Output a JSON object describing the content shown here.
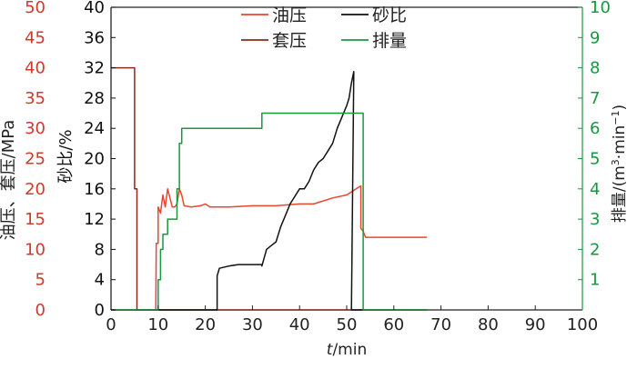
{
  "chart_data": {
    "type": "line",
    "x_axis": {
      "label_italic": "t",
      "label_rest": "/min",
      "min": 0,
      "max": 100,
      "ticks": [
        "0",
        "10",
        "20",
        "30",
        "40",
        "50",
        "60",
        "70",
        "80",
        "90",
        "100"
      ]
    },
    "y_axes": {
      "outer_left": {
        "label": "油压、套压/MPa",
        "color": "#d0392b",
        "min": 0,
        "max": 50,
        "ticks": [
          "0",
          "5",
          "10",
          "15",
          "20",
          "25",
          "30",
          "35",
          "40",
          "45",
          "50"
        ]
      },
      "inner_left": {
        "label": "砂比/%",
        "color": "#111111",
        "min": 0,
        "max": 40,
        "ticks": [
          "0",
          "4",
          "8",
          "12",
          "16",
          "20",
          "24",
          "28",
          "32",
          "36",
          "40"
        ]
      },
      "right": {
        "label_main": "排量/(m",
        "label_sup1": "3",
        "label_mid": "·min",
        "label_sup2": "−1",
        "label_end": ")",
        "color": "#1a9641",
        "min": 0,
        "max": 10,
        "ticks": [
          "1",
          "2",
          "3",
          "4",
          "5",
          "6",
          "7",
          "8",
          "9",
          "10"
        ]
      }
    },
    "legend": {
      "placement": "top-center",
      "entries": [
        {
          "name": "油压",
          "color": "#e8472f"
        },
        {
          "name": "砂比",
          "color": "#111111"
        },
        {
          "name": "套压",
          "color": "#8b2a1a"
        },
        {
          "name": "排量",
          "color": "#1a9641"
        }
      ]
    },
    "series": [
      {
        "name": "油压",
        "axis": "outer_left",
        "color": "#e8472f",
        "points": [
          [
            0,
            0
          ],
          [
            9.5,
            0
          ],
          [
            9.6,
            11
          ],
          [
            10,
            11
          ],
          [
            10,
            17
          ],
          [
            10.5,
            16
          ],
          [
            11,
            19
          ],
          [
            11.5,
            17
          ],
          [
            12,
            20
          ],
          [
            12.5,
            18.5
          ],
          [
            13,
            17
          ],
          [
            13.5,
            17
          ],
          [
            14,
            17.5
          ],
          [
            14.5,
            20
          ],
          [
            15,
            19
          ],
          [
            15.5,
            17.2
          ],
          [
            17,
            17
          ],
          [
            19,
            17.2
          ],
          [
            20,
            17.5
          ],
          [
            21,
            17
          ],
          [
            25,
            17
          ],
          [
            30,
            17.2
          ],
          [
            35,
            17.2
          ],
          [
            40,
            17.5
          ],
          [
            43,
            17.5
          ],
          [
            45,
            18
          ],
          [
            47,
            18.5
          ],
          [
            50,
            19
          ],
          [
            52,
            20
          ],
          [
            53,
            20.5
          ],
          [
            53,
            13.5
          ],
          [
            53.5,
            13
          ],
          [
            54,
            12
          ],
          [
            67,
            12
          ]
        ]
      },
      {
        "name": "套压",
        "axis": "outer_left",
        "color": "#8b2a1a",
        "points": [
          [
            0,
            40
          ],
          [
            5,
            40
          ],
          [
            5,
            20
          ],
          [
            5.5,
            20
          ],
          [
            5.5,
            0
          ],
          [
            67,
            0
          ]
        ]
      },
      {
        "name": "砂比",
        "axis": "inner_left",
        "color": "#111111",
        "points": [
          [
            0,
            0
          ],
          [
            22.5,
            0
          ],
          [
            22.5,
            4.5
          ],
          [
            23,
            5.5
          ],
          [
            25,
            5.8
          ],
          [
            27,
            6
          ],
          [
            32,
            6
          ],
          [
            32,
            5.8
          ],
          [
            33,
            8
          ],
          [
            34,
            8.5
          ],
          [
            35,
            9
          ],
          [
            36,
            11
          ],
          [
            37,
            12.5
          ],
          [
            38,
            14
          ],
          [
            39,
            15
          ],
          [
            40,
            16
          ],
          [
            41,
            16
          ],
          [
            42,
            17
          ],
          [
            43,
            18.5
          ],
          [
            44,
            19.5
          ],
          [
            45,
            20
          ],
          [
            46,
            21
          ],
          [
            47,
            22
          ],
          [
            48,
            24
          ],
          [
            49,
            25.5
          ],
          [
            50,
            27
          ],
          [
            50.5,
            28
          ],
          [
            51,
            30
          ],
          [
            51.5,
            31.5
          ],
          [
            51,
            0
          ],
          [
            67,
            0
          ]
        ]
      },
      {
        "name": "排量",
        "axis": "right",
        "color": "#1a9641",
        "points": [
          [
            0,
            0
          ],
          [
            10,
            0
          ],
          [
            10,
            1
          ],
          [
            10.5,
            1
          ],
          [
            10.5,
            2
          ],
          [
            11,
            2
          ],
          [
            11,
            2.5
          ],
          [
            12,
            2.5
          ],
          [
            12,
            3
          ],
          [
            14,
            3
          ],
          [
            14,
            4
          ],
          [
            14.5,
            4
          ],
          [
            14.5,
            5.5
          ],
          [
            15,
            5.5
          ],
          [
            15,
            6
          ],
          [
            32,
            6
          ],
          [
            32,
            6.5
          ],
          [
            53.5,
            6.5
          ],
          [
            53.5,
            0
          ],
          [
            67,
            0
          ]
        ]
      }
    ]
  }
}
